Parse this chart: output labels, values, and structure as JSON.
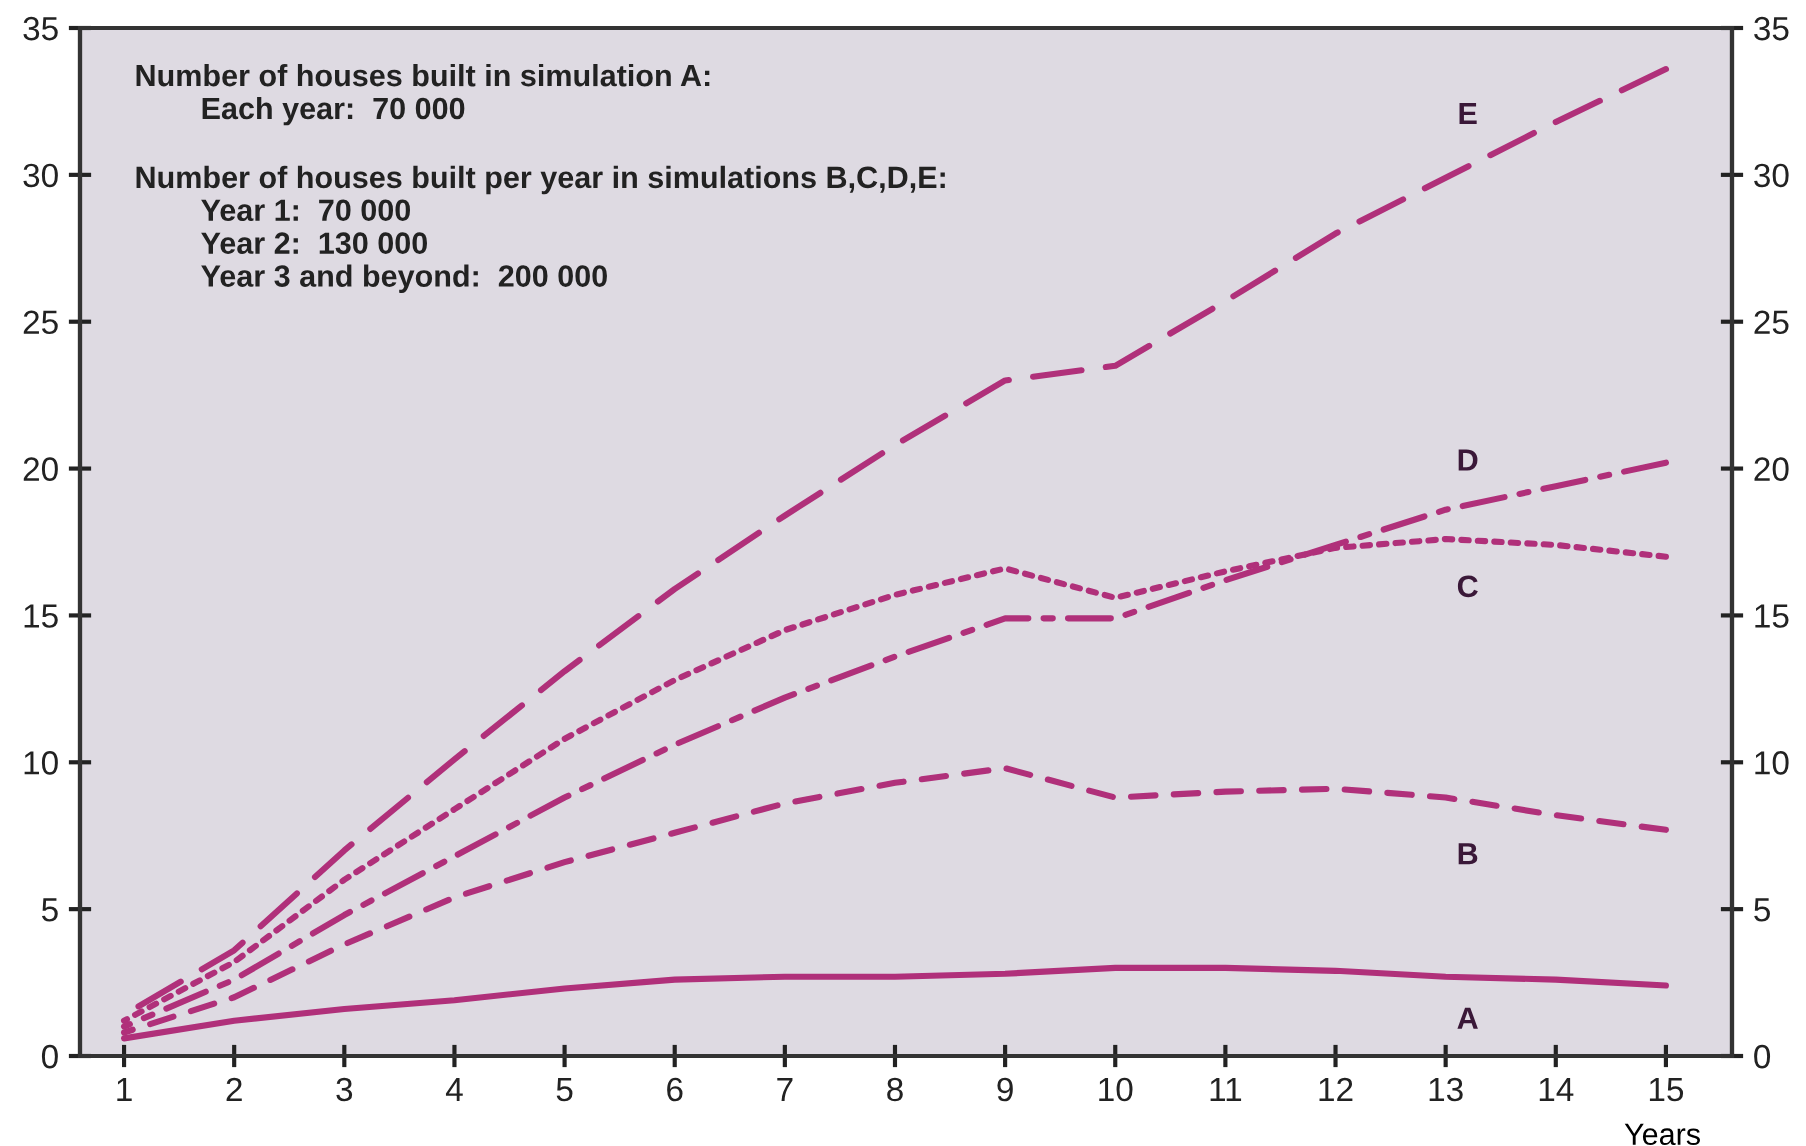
{
  "chart_data": {
    "type": "line",
    "xlabel": "Years",
    "x": [
      1,
      2,
      3,
      4,
      5,
      6,
      7,
      8,
      9,
      10,
      11,
      12,
      13,
      14,
      15
    ],
    "xlim": [
      0.6,
      15.6
    ],
    "xticks": [
      1,
      2,
      3,
      4,
      5,
      6,
      7,
      8,
      9,
      10,
      11,
      12,
      13,
      14,
      15
    ],
    "ylim": [
      0,
      35
    ],
    "yticks": [
      0,
      5,
      10,
      15,
      20,
      25,
      30,
      35
    ],
    "y2lim": [
      0,
      35
    ],
    "y2ticks": [
      0,
      5,
      10,
      15,
      20,
      25,
      30,
      35
    ],
    "grid": false,
    "legend": false,
    "annotations": [
      "Number of houses built in simulation A:",
      "Each year:  70 000",
      "Number of houses built per year in simulations B,C,D,E:",
      "Year 1:  70 000",
      "Year 2:  130 000",
      "Year 3 and beyond:  200 000"
    ],
    "series": [
      {
        "name": "A",
        "color": "#b0307a",
        "line_style": "solid",
        "values": [
          0.6,
          1.2,
          1.6,
          1.9,
          2.3,
          2.6,
          2.7,
          2.7,
          2.8,
          3.0,
          3.0,
          2.9,
          2.7,
          2.6,
          2.4
        ]
      },
      {
        "name": "B",
        "color": "#b0307a",
        "line_style": "dashed",
        "values": [
          0.8,
          2.0,
          3.8,
          5.4,
          6.6,
          7.6,
          8.6,
          9.3,
          9.8,
          8.8,
          9.0,
          9.1,
          8.8,
          8.2,
          7.7
        ]
      },
      {
        "name": "C",
        "color": "#b0307a",
        "line_style": "dotted",
        "values": [
          1.2,
          3.2,
          6.0,
          8.4,
          10.8,
          12.8,
          14.5,
          15.7,
          16.6,
          15.6,
          16.5,
          17.3,
          17.6,
          17.4,
          17.0
        ]
      },
      {
        "name": "D",
        "color": "#b0307a",
        "line_style": "dashdot",
        "values": [
          1.0,
          2.6,
          4.8,
          6.8,
          8.8,
          10.6,
          12.2,
          13.6,
          14.9,
          14.9,
          16.2,
          17.4,
          18.6,
          19.4,
          20.2
        ]
      },
      {
        "name": "E",
        "color": "#b0307a",
        "line_style": "longdash",
        "values": [
          1.4,
          3.6,
          7.0,
          10.1,
          13.1,
          15.9,
          18.4,
          20.8,
          23.0,
          23.5,
          25.7,
          28.0,
          29.9,
          31.8,
          33.6
        ]
      }
    ]
  }
}
